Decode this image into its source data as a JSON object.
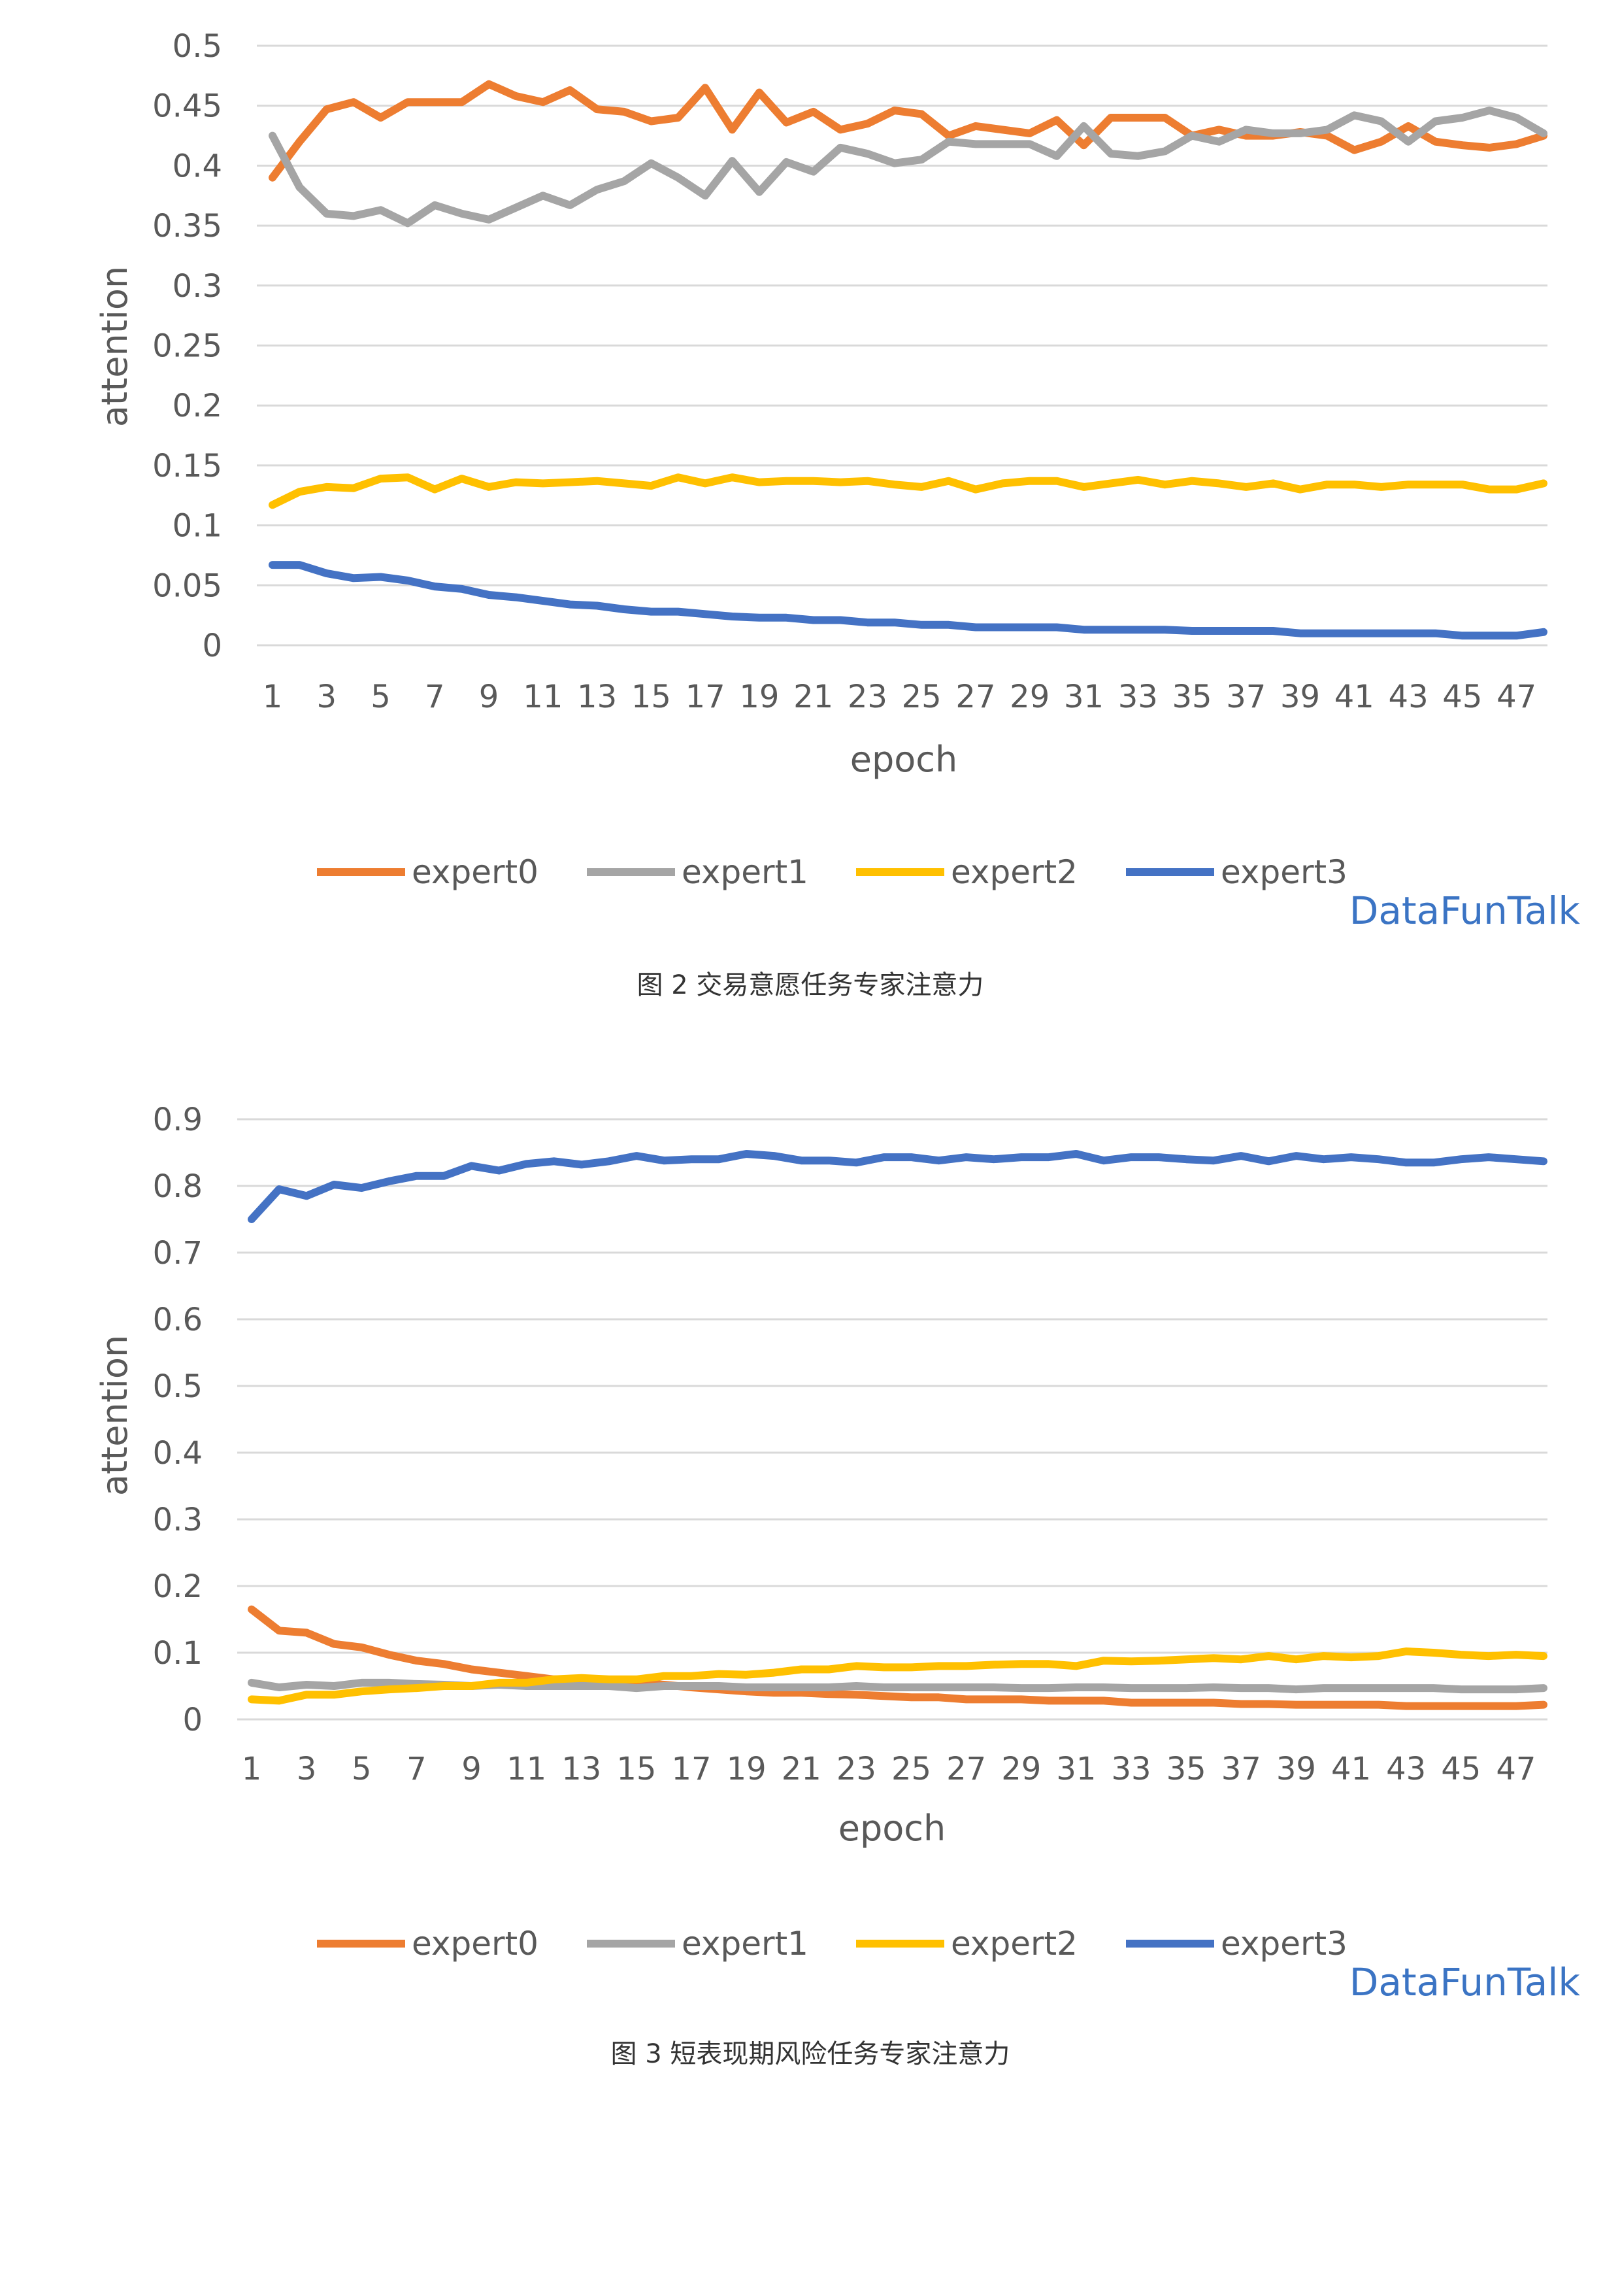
{
  "colors": {
    "expert0": "#ed7d31",
    "expert1": "#a5a5a5",
    "expert2": "#ffc000",
    "expert3": "#4472c4",
    "grid": "#d9d9d9",
    "axis_text": "#595959",
    "watermark": "#3b74c4"
  },
  "chart_data": [
    {
      "type": "line",
      "caption": "图 2   交易意愿任务专家注意力",
      "watermark": "DataFunTalk",
      "xlabel": "epoch",
      "ylabel": "attention",
      "x": [
        1,
        2,
        3,
        4,
        5,
        6,
        7,
        8,
        9,
        10,
        11,
        12,
        13,
        14,
        15,
        16,
        17,
        18,
        19,
        20,
        21,
        22,
        23,
        24,
        25,
        26,
        27,
        28,
        29,
        30,
        31,
        32,
        33,
        34,
        35,
        36,
        37,
        38,
        39,
        40,
        41,
        42,
        43,
        44,
        45,
        46,
        47,
        48
      ],
      "x_tick_labels": [
        "1",
        "3",
        "5",
        "7",
        "9",
        "11",
        "13",
        "15",
        "17",
        "19",
        "21",
        "23",
        "25",
        "27",
        "29",
        "31",
        "33",
        "35",
        "37",
        "39",
        "41",
        "43",
        "45",
        "47"
      ],
      "ylim": [
        0,
        0.5
      ],
      "y_ticks": [
        0,
        0.05,
        0.1,
        0.15,
        0.2,
        0.25,
        0.3,
        0.35,
        0.4,
        0.45,
        0.5
      ],
      "y_tick_labels": [
        "0",
        "0.05",
        "0.1",
        "0.15",
        "0.2",
        "0.25",
        "0.3",
        "0.35",
        "0.4",
        "0.45",
        "0.5"
      ],
      "legend_position": "bottom",
      "series": [
        {
          "name": "expert0",
          "values": [
            0.39,
            0.42,
            0.447,
            0.453,
            0.44,
            0.453,
            0.453,
            0.453,
            0.468,
            0.458,
            0.453,
            0.463,
            0.447,
            0.445,
            0.437,
            0.44,
            0.465,
            0.43,
            0.461,
            0.436,
            0.445,
            0.43,
            0.435,
            0.446,
            0.443,
            0.425,
            0.433,
            0.43,
            0.427,
            0.438,
            0.417,
            0.44,
            0.44,
            0.44,
            0.425,
            0.43,
            0.425,
            0.425,
            0.428,
            0.425,
            0.413,
            0.42,
            0.433,
            0.42,
            0.417,
            0.415,
            0.418,
            0.425
          ]
        },
        {
          "name": "expert1",
          "values": [
            0.425,
            0.382,
            0.36,
            0.358,
            0.363,
            0.352,
            0.367,
            0.36,
            0.355,
            0.365,
            0.375,
            0.367,
            0.38,
            0.387,
            0.402,
            0.39,
            0.375,
            0.404,
            0.378,
            0.403,
            0.395,
            0.415,
            0.41,
            0.402,
            0.405,
            0.42,
            0.418,
            0.418,
            0.418,
            0.408,
            0.433,
            0.41,
            0.408,
            0.412,
            0.425,
            0.42,
            0.43,
            0.427,
            0.427,
            0.43,
            0.442,
            0.437,
            0.42,
            0.437,
            0.44,
            0.446,
            0.44,
            0.427
          ]
        },
        {
          "name": "expert2",
          "values": [
            0.117,
            0.128,
            0.132,
            0.131,
            0.139,
            0.14,
            0.13,
            0.139,
            0.132,
            0.136,
            0.135,
            0.136,
            0.137,
            0.135,
            0.133,
            0.14,
            0.135,
            0.14,
            0.136,
            0.137,
            0.137,
            0.136,
            0.137,
            0.134,
            0.132,
            0.137,
            0.13,
            0.135,
            0.137,
            0.137,
            0.132,
            0.135,
            0.138,
            0.134,
            0.137,
            0.135,
            0.132,
            0.135,
            0.13,
            0.134,
            0.134,
            0.132,
            0.134,
            0.134,
            0.134,
            0.13,
            0.13,
            0.135
          ]
        },
        {
          "name": "expert3",
          "values": [
            0.067,
            0.067,
            0.06,
            0.056,
            0.057,
            0.054,
            0.049,
            0.047,
            0.042,
            0.04,
            0.037,
            0.034,
            0.033,
            0.03,
            0.028,
            0.028,
            0.026,
            0.024,
            0.023,
            0.023,
            0.021,
            0.021,
            0.019,
            0.019,
            0.017,
            0.017,
            0.015,
            0.015,
            0.015,
            0.015,
            0.013,
            0.013,
            0.013,
            0.013,
            0.012,
            0.012,
            0.012,
            0.012,
            0.01,
            0.01,
            0.01,
            0.01,
            0.01,
            0.01,
            0.008,
            0.008,
            0.008,
            0.011
          ]
        }
      ]
    },
    {
      "type": "line",
      "caption": "图 3   短表现期风险任务专家注意力",
      "watermark": "DataFunTalk",
      "xlabel": "epoch",
      "ylabel": "attention",
      "x": [
        1,
        2,
        3,
        4,
        5,
        6,
        7,
        8,
        9,
        10,
        11,
        12,
        13,
        14,
        15,
        16,
        17,
        18,
        19,
        20,
        21,
        22,
        23,
        24,
        25,
        26,
        27,
        28,
        29,
        30,
        31,
        32,
        33,
        34,
        35,
        36,
        37,
        38,
        39,
        40,
        41,
        42,
        43,
        44,
        45,
        46,
        47,
        48
      ],
      "x_tick_labels": [
        "1",
        "3",
        "5",
        "7",
        "9",
        "11",
        "13",
        "15",
        "17",
        "19",
        "21",
        "23",
        "25",
        "27",
        "29",
        "31",
        "33",
        "35",
        "37",
        "39",
        "41",
        "43",
        "45",
        "47"
      ],
      "ylim": [
        0,
        0.9
      ],
      "y_ticks": [
        0,
        0.1,
        0.2,
        0.3,
        0.4,
        0.5,
        0.6,
        0.7,
        0.8,
        0.9
      ],
      "y_tick_labels": [
        "0",
        "0.1",
        "0.2",
        "0.3",
        "0.4",
        "0.5",
        "0.6",
        "0.7",
        "0.8",
        "0.9"
      ],
      "legend_position": "bottom",
      "series": [
        {
          "name": "expert0",
          "values": [
            0.165,
            0.133,
            0.13,
            0.113,
            0.108,
            0.097,
            0.088,
            0.083,
            0.075,
            0.07,
            0.065,
            0.06,
            0.06,
            0.057,
            0.055,
            0.052,
            0.048,
            0.045,
            0.042,
            0.04,
            0.04,
            0.038,
            0.037,
            0.035,
            0.033,
            0.033,
            0.03,
            0.03,
            0.03,
            0.028,
            0.028,
            0.028,
            0.025,
            0.025,
            0.025,
            0.025,
            0.023,
            0.023,
            0.022,
            0.022,
            0.022,
            0.022,
            0.02,
            0.02,
            0.02,
            0.02,
            0.02,
            0.022
          ]
        },
        {
          "name": "expert1",
          "values": [
            0.055,
            0.048,
            0.052,
            0.05,
            0.055,
            0.055,
            0.053,
            0.052,
            0.05,
            0.052,
            0.05,
            0.05,
            0.05,
            0.05,
            0.047,
            0.05,
            0.05,
            0.05,
            0.048,
            0.048,
            0.048,
            0.048,
            0.05,
            0.048,
            0.048,
            0.048,
            0.048,
            0.048,
            0.047,
            0.047,
            0.048,
            0.048,
            0.047,
            0.047,
            0.047,
            0.048,
            0.047,
            0.047,
            0.045,
            0.047,
            0.047,
            0.047,
            0.047,
            0.047,
            0.045,
            0.045,
            0.045,
            0.047
          ]
        },
        {
          "name": "expert2",
          "values": [
            0.03,
            0.028,
            0.037,
            0.037,
            0.042,
            0.045,
            0.047,
            0.05,
            0.05,
            0.055,
            0.055,
            0.06,
            0.062,
            0.06,
            0.06,
            0.065,
            0.065,
            0.068,
            0.067,
            0.07,
            0.075,
            0.075,
            0.08,
            0.078,
            0.078,
            0.08,
            0.08,
            0.082,
            0.083,
            0.083,
            0.08,
            0.088,
            0.087,
            0.088,
            0.09,
            0.092,
            0.09,
            0.095,
            0.09,
            0.095,
            0.093,
            0.095,
            0.102,
            0.1,
            0.097,
            0.095,
            0.097,
            0.095
          ]
        },
        {
          "name": "expert3",
          "values": [
            0.75,
            0.795,
            0.785,
            0.802,
            0.797,
            0.807,
            0.815,
            0.815,
            0.83,
            0.823,
            0.833,
            0.837,
            0.832,
            0.837,
            0.845,
            0.838,
            0.84,
            0.84,
            0.848,
            0.845,
            0.838,
            0.838,
            0.835,
            0.843,
            0.843,
            0.838,
            0.843,
            0.84,
            0.843,
            0.843,
            0.848,
            0.838,
            0.843,
            0.843,
            0.84,
            0.838,
            0.845,
            0.837,
            0.845,
            0.84,
            0.843,
            0.84,
            0.835,
            0.835,
            0.84,
            0.843,
            0.84,
            0.837
          ]
        }
      ]
    }
  ]
}
